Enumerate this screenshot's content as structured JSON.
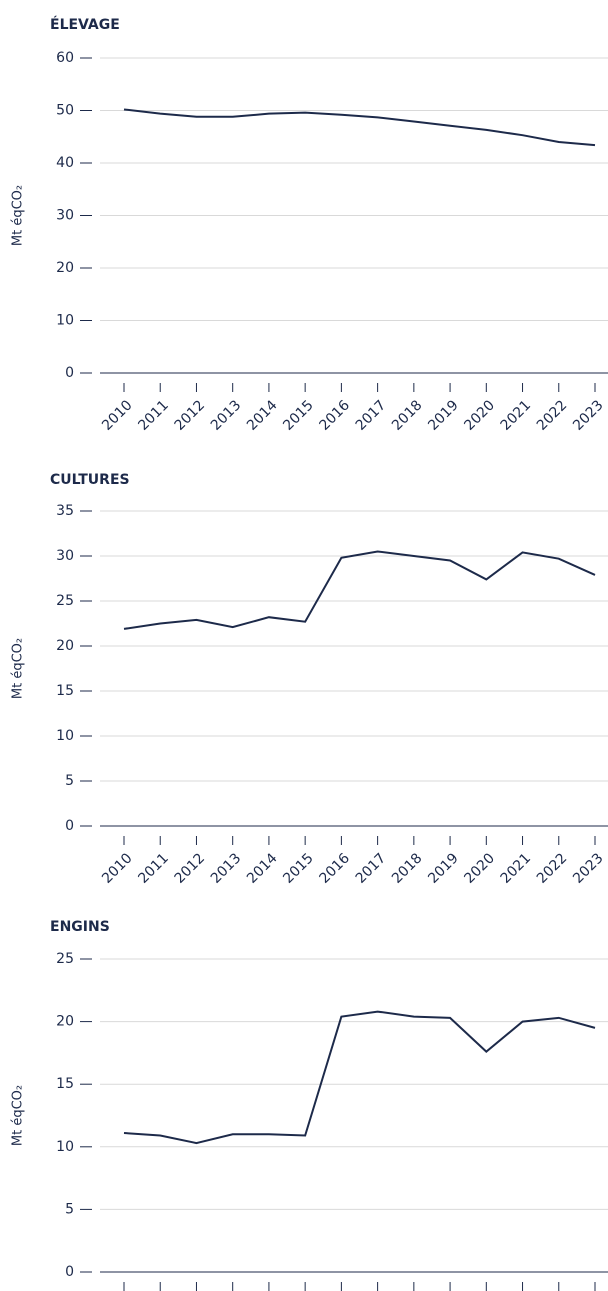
{
  "chart_data": [
    {
      "type": "line",
      "title": "ÉLEVAGE",
      "ylabel": "Mt éqCO₂",
      "categories": [
        "2010",
        "2011",
        "2012",
        "2013",
        "2014",
        "2015",
        "2016",
        "2017",
        "2018",
        "2019",
        "2020",
        "2021",
        "2022",
        "2023"
      ],
      "series": [
        {
          "name": null,
          "color": "#1d2a4a",
          "values": [
            50.2,
            49.4,
            48.8,
            48.8,
            49.4,
            49.6,
            49.2,
            48.7,
            47.9,
            47.1,
            46.3,
            45.3,
            44.0,
            43.4
          ]
        }
      ],
      "ylim": [
        0,
        60
      ],
      "yticks": [
        0,
        10,
        20,
        30,
        40,
        50,
        60
      ],
      "grid": true
    },
    {
      "type": "line",
      "title": "CULTURES",
      "ylabel": "Mt éqCO₂",
      "categories": [
        "2010",
        "2011",
        "2012",
        "2013",
        "2014",
        "2015",
        "2016",
        "2017",
        "2018",
        "2019",
        "2020",
        "2021",
        "2022",
        "2023"
      ],
      "series": [
        {
          "name": null,
          "color": "#1d2a4a",
          "values": [
            21.9,
            22.5,
            22.9,
            22.1,
            23.2,
            22.7,
            29.8,
            30.5,
            30.0,
            29.5,
            27.4,
            30.4,
            29.7,
            27.9
          ]
        }
      ],
      "ylim": [
        0,
        35
      ],
      "yticks": [
        0,
        5,
        10,
        15,
        20,
        25,
        30,
        35
      ],
      "grid": true
    },
    {
      "type": "line",
      "title": "ENGINS",
      "ylabel": "Mt éqCO₂",
      "categories": [
        null,
        null,
        null,
        null,
        null,
        null,
        null,
        null,
        null,
        null,
        null,
        null,
        null,
        null
      ],
      "series": [
        {
          "name": null,
          "color": "#1d2a4a",
          "values": [
            11.1,
            10.9,
            10.3,
            11.0,
            11.0,
            10.9,
            20.4,
            20.8,
            20.4,
            20.3,
            17.6,
            20.0,
            20.3,
            19.5
          ]
        }
      ],
      "ylim": [
        0,
        25
      ],
      "yticks": [
        0,
        5,
        10,
        15,
        20,
        25
      ],
      "grid": true
    }
  ]
}
